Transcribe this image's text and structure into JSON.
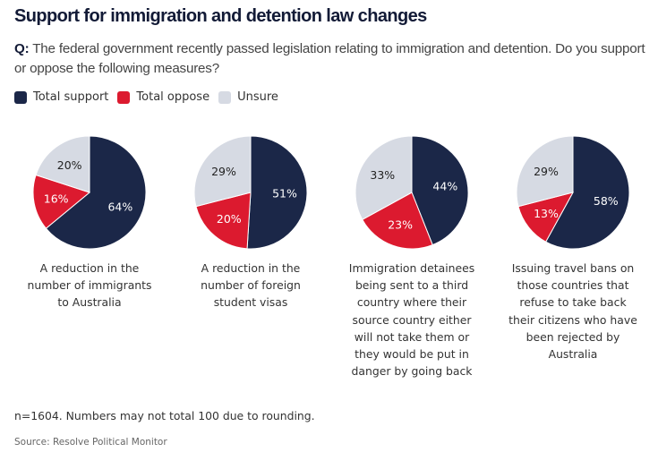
{
  "header": {
    "title": "Support for immigration and detention law changes",
    "question_prefix": "Q:",
    "question_text": " The federal government recently passed legislation relating to immigration and detention. Do you support or oppose the following measures?"
  },
  "legend": [
    {
      "label": "Total support",
      "color": "#1b2748"
    },
    {
      "label": "Total oppose",
      "color": "#dc1a2f"
    },
    {
      "label": "Unsure",
      "color": "#d6dae3"
    }
  ],
  "chart_data": [
    {
      "type": "pie",
      "title": "A reduction in the number of immigrants to Australia",
      "caption_lines": [
        "A reduction in the",
        "number of immigrants",
        "to Australia"
      ],
      "slices": [
        {
          "label": "Total support",
          "value": 64
        },
        {
          "label": "Total oppose",
          "value": 16
        },
        {
          "label": "Unsure",
          "value": 20
        }
      ]
    },
    {
      "type": "pie",
      "title": "A reduction in the number of foreign student visas",
      "caption_lines": [
        "A reduction in the",
        "number of foreign",
        "student visas"
      ],
      "slices": [
        {
          "label": "Total support",
          "value": 51
        },
        {
          "label": "Total oppose",
          "value": 20
        },
        {
          "label": "Unsure",
          "value": 29
        }
      ]
    },
    {
      "type": "pie",
      "title": "Immigration detainees being sent to a third country where their source country either will not take them or they would be put in danger by going back",
      "caption_lines": [
        "Immigration detainees",
        "being sent to a third",
        "country where their",
        "source country either",
        "will not take them or",
        "they would be put in",
        "danger by going back"
      ],
      "slices": [
        {
          "label": "Total support",
          "value": 44
        },
        {
          "label": "Total oppose",
          "value": 23
        },
        {
          "label": "Unsure",
          "value": 33
        }
      ]
    },
    {
      "type": "pie",
      "title": "Issuing travel bans on those countries that refuse to take back their citizens who have been rejected by Australia",
      "caption_lines": [
        "Issuing travel bans on",
        "those countries that",
        "refuse to take back",
        "their citizens who have",
        "been rejected by",
        "Australia"
      ],
      "slices": [
        {
          "label": "Total support",
          "value": 58
        },
        {
          "label": "Total oppose",
          "value": 13
        },
        {
          "label": "Unsure",
          "value": 29
        }
      ]
    }
  ],
  "footer": {
    "note": "n=1604. Numbers may not total 100 due to rounding.",
    "source": "Source: Resolve Political Monitor"
  }
}
